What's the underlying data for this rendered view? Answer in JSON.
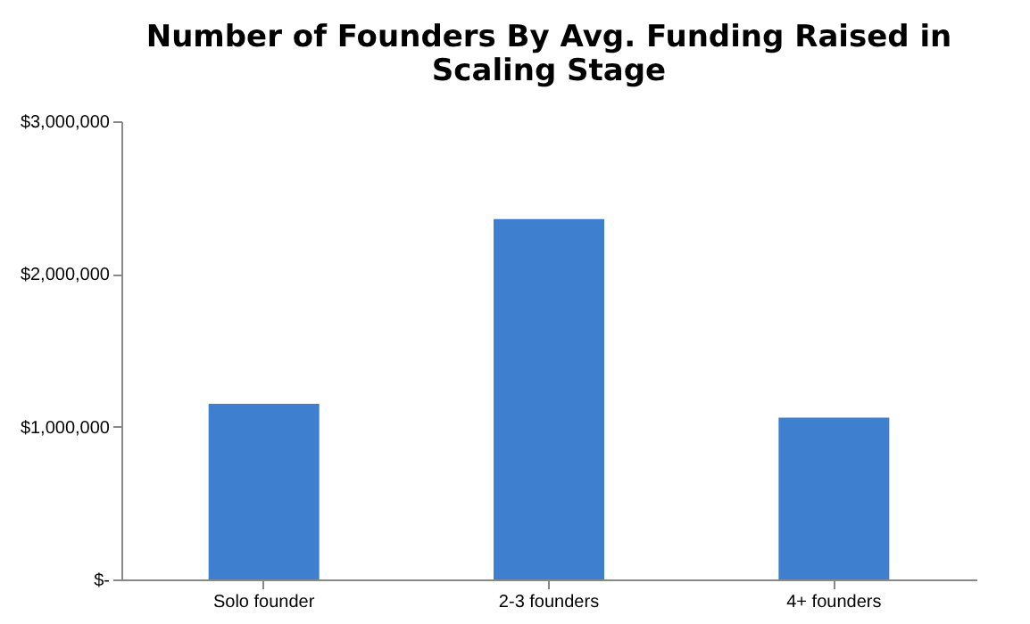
{
  "chart_data": {
    "type": "bar",
    "title": "Number of Founders By Avg. Funding Raised in Scaling Stage",
    "categories": [
      "Solo founder",
      "2-3 founders",
      "4+ founders"
    ],
    "values": [
      1150000,
      2360000,
      1060000
    ],
    "color": "#3f7fcf",
    "ylim": [
      0,
      3000000
    ],
    "yticks": [
      {
        "value": 0,
        "label": "$-"
      },
      {
        "value": 1000000,
        "label": "$1,000,000"
      },
      {
        "value": 2000000,
        "label": "$2,000,000"
      },
      {
        "value": 3000000,
        "label": "$3,000,000"
      }
    ],
    "grid": false
  }
}
